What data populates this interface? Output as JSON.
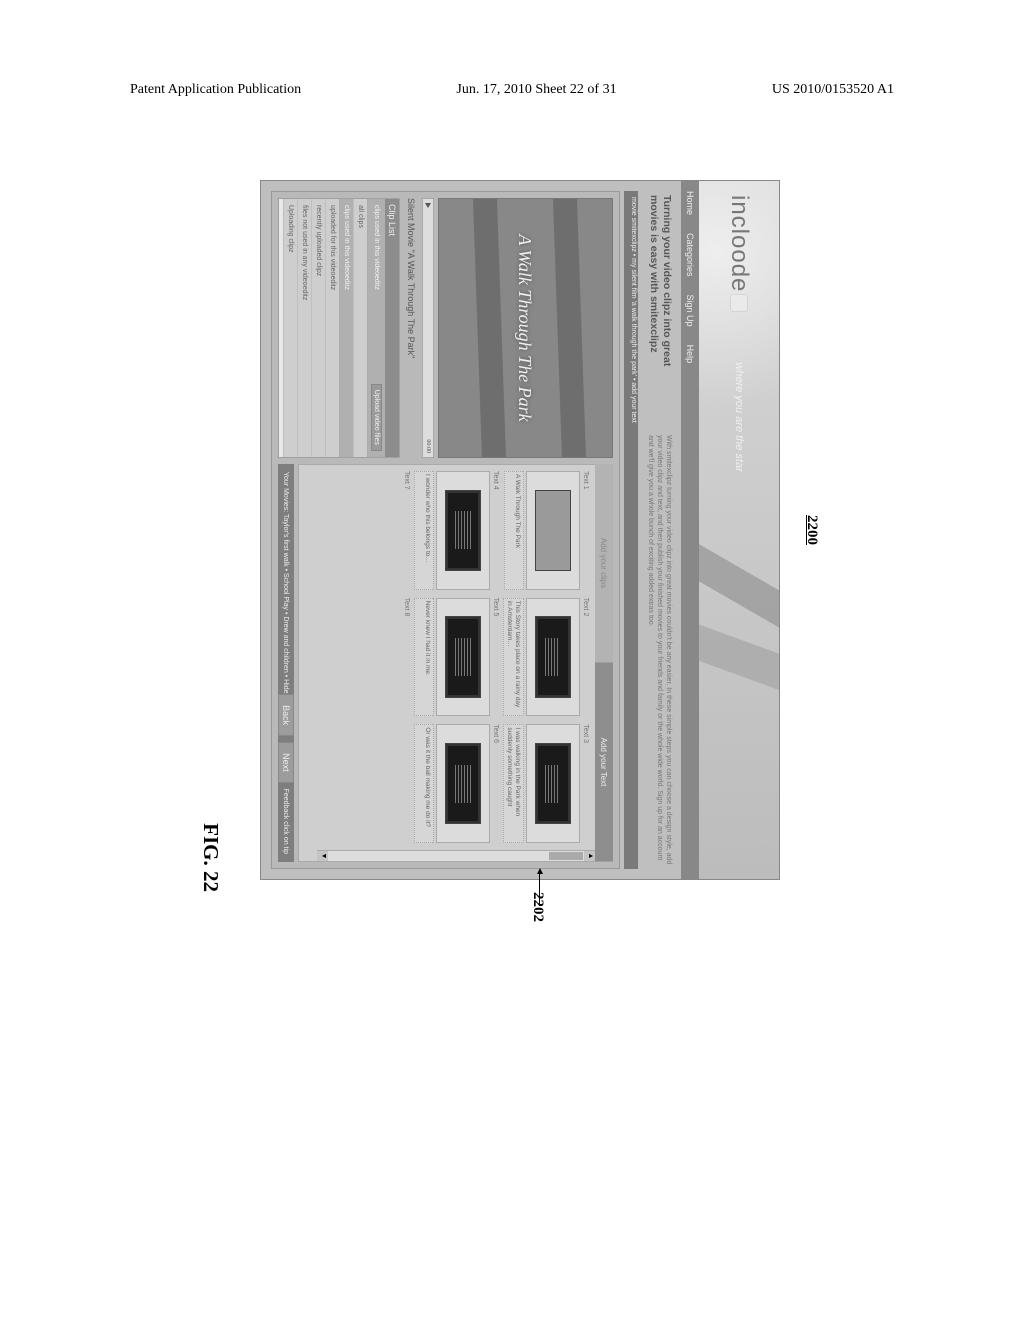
{
  "header": {
    "left": "Patent Application Publication",
    "center": "Jun. 17, 2010  Sheet 22 of 31",
    "right": "US 2010/0153520 A1"
  },
  "figure_number": "2200",
  "figure_caption": "FIG. 22",
  "callout": "2202",
  "banner": {
    "logo": "incloode",
    "tagline": "where you are the star"
  },
  "navbar": [
    "Home",
    "Categories",
    "Sign Up",
    "Help"
  ],
  "intro": {
    "heading": "Turning your video clipz into great movies is easy with smitexclipz",
    "body": "With smitexclipz turning your video clipz into great movies couldn't be any easier. In these simple steps you can choose a design style, add your video clipz and text, and then publish your finished movies to your friends and family or the whole wide world. Sign up for an account and we'll give you a whole bunch of exciting added extras too."
  },
  "subtitle": "movie smitexclipz • my silent film 'a walk through the park' • add your text",
  "preview": {
    "title": "A Walk Through The Park",
    "time": "00:00"
  },
  "silent_movie_label": "Silent Movie \"A Walk Through The Park\"",
  "cliplist": {
    "header": "Clip List",
    "upload_button": "Upload video files",
    "items": [
      {
        "label": "clips used in this videoeditz",
        "selected": true,
        "upload": true
      },
      {
        "label": "all clips",
        "selected": false
      },
      {
        "label": "clips used in this videoeditz",
        "selected": true
      },
      {
        "label": "uploaded for this videoeditz",
        "selected": false
      },
      {
        "label": "recently uploaded clipz",
        "selected": false
      },
      {
        "label": "files not used in any videoeditz",
        "selected": false
      },
      {
        "label": "Uploading clipz",
        "selected": false
      }
    ]
  },
  "tabs": [
    {
      "label": "Add your clips",
      "active": false
    },
    {
      "label": "Add your Text",
      "active": true
    }
  ],
  "story_cells": [
    {
      "label": "Text 1",
      "caption": "A Walk Through The Park",
      "light": true
    },
    {
      "label": "Text 2",
      "caption": "This Story takes place on a rainy day in Amsterdam…"
    },
    {
      "label": "Text 3",
      "caption": "I was walking in the Park when suddenly something caught"
    },
    {
      "label": "Text 4",
      "caption": "I wonder who this belongs to…"
    },
    {
      "label": "Text 5",
      "caption": "Never knew I had it in me."
    },
    {
      "label": "Text 6",
      "caption": "Or was it the ball making me do it?"
    },
    {
      "label": "Text 7",
      "caption": ""
    },
    {
      "label": "Text 8",
      "caption": ""
    }
  ],
  "statusbar": {
    "left": "Your Movies: Taylor's first walk • School Play • Drew and children • Hide",
    "back": "Back",
    "next": "Next",
    "tip": "Feedback click on tip"
  },
  "colors": {
    "page_bg": "#ffffff",
    "app_bg": "#bfbfbf",
    "banner_grad_from": "#d8d8d8",
    "banner_grad_to": "#bcbcbc",
    "navbar_bg": "#888888",
    "preview_bg": "#888888",
    "storyboard_bg": "#cfcfcf",
    "dark_thumb": "#1a1a1a"
  }
}
